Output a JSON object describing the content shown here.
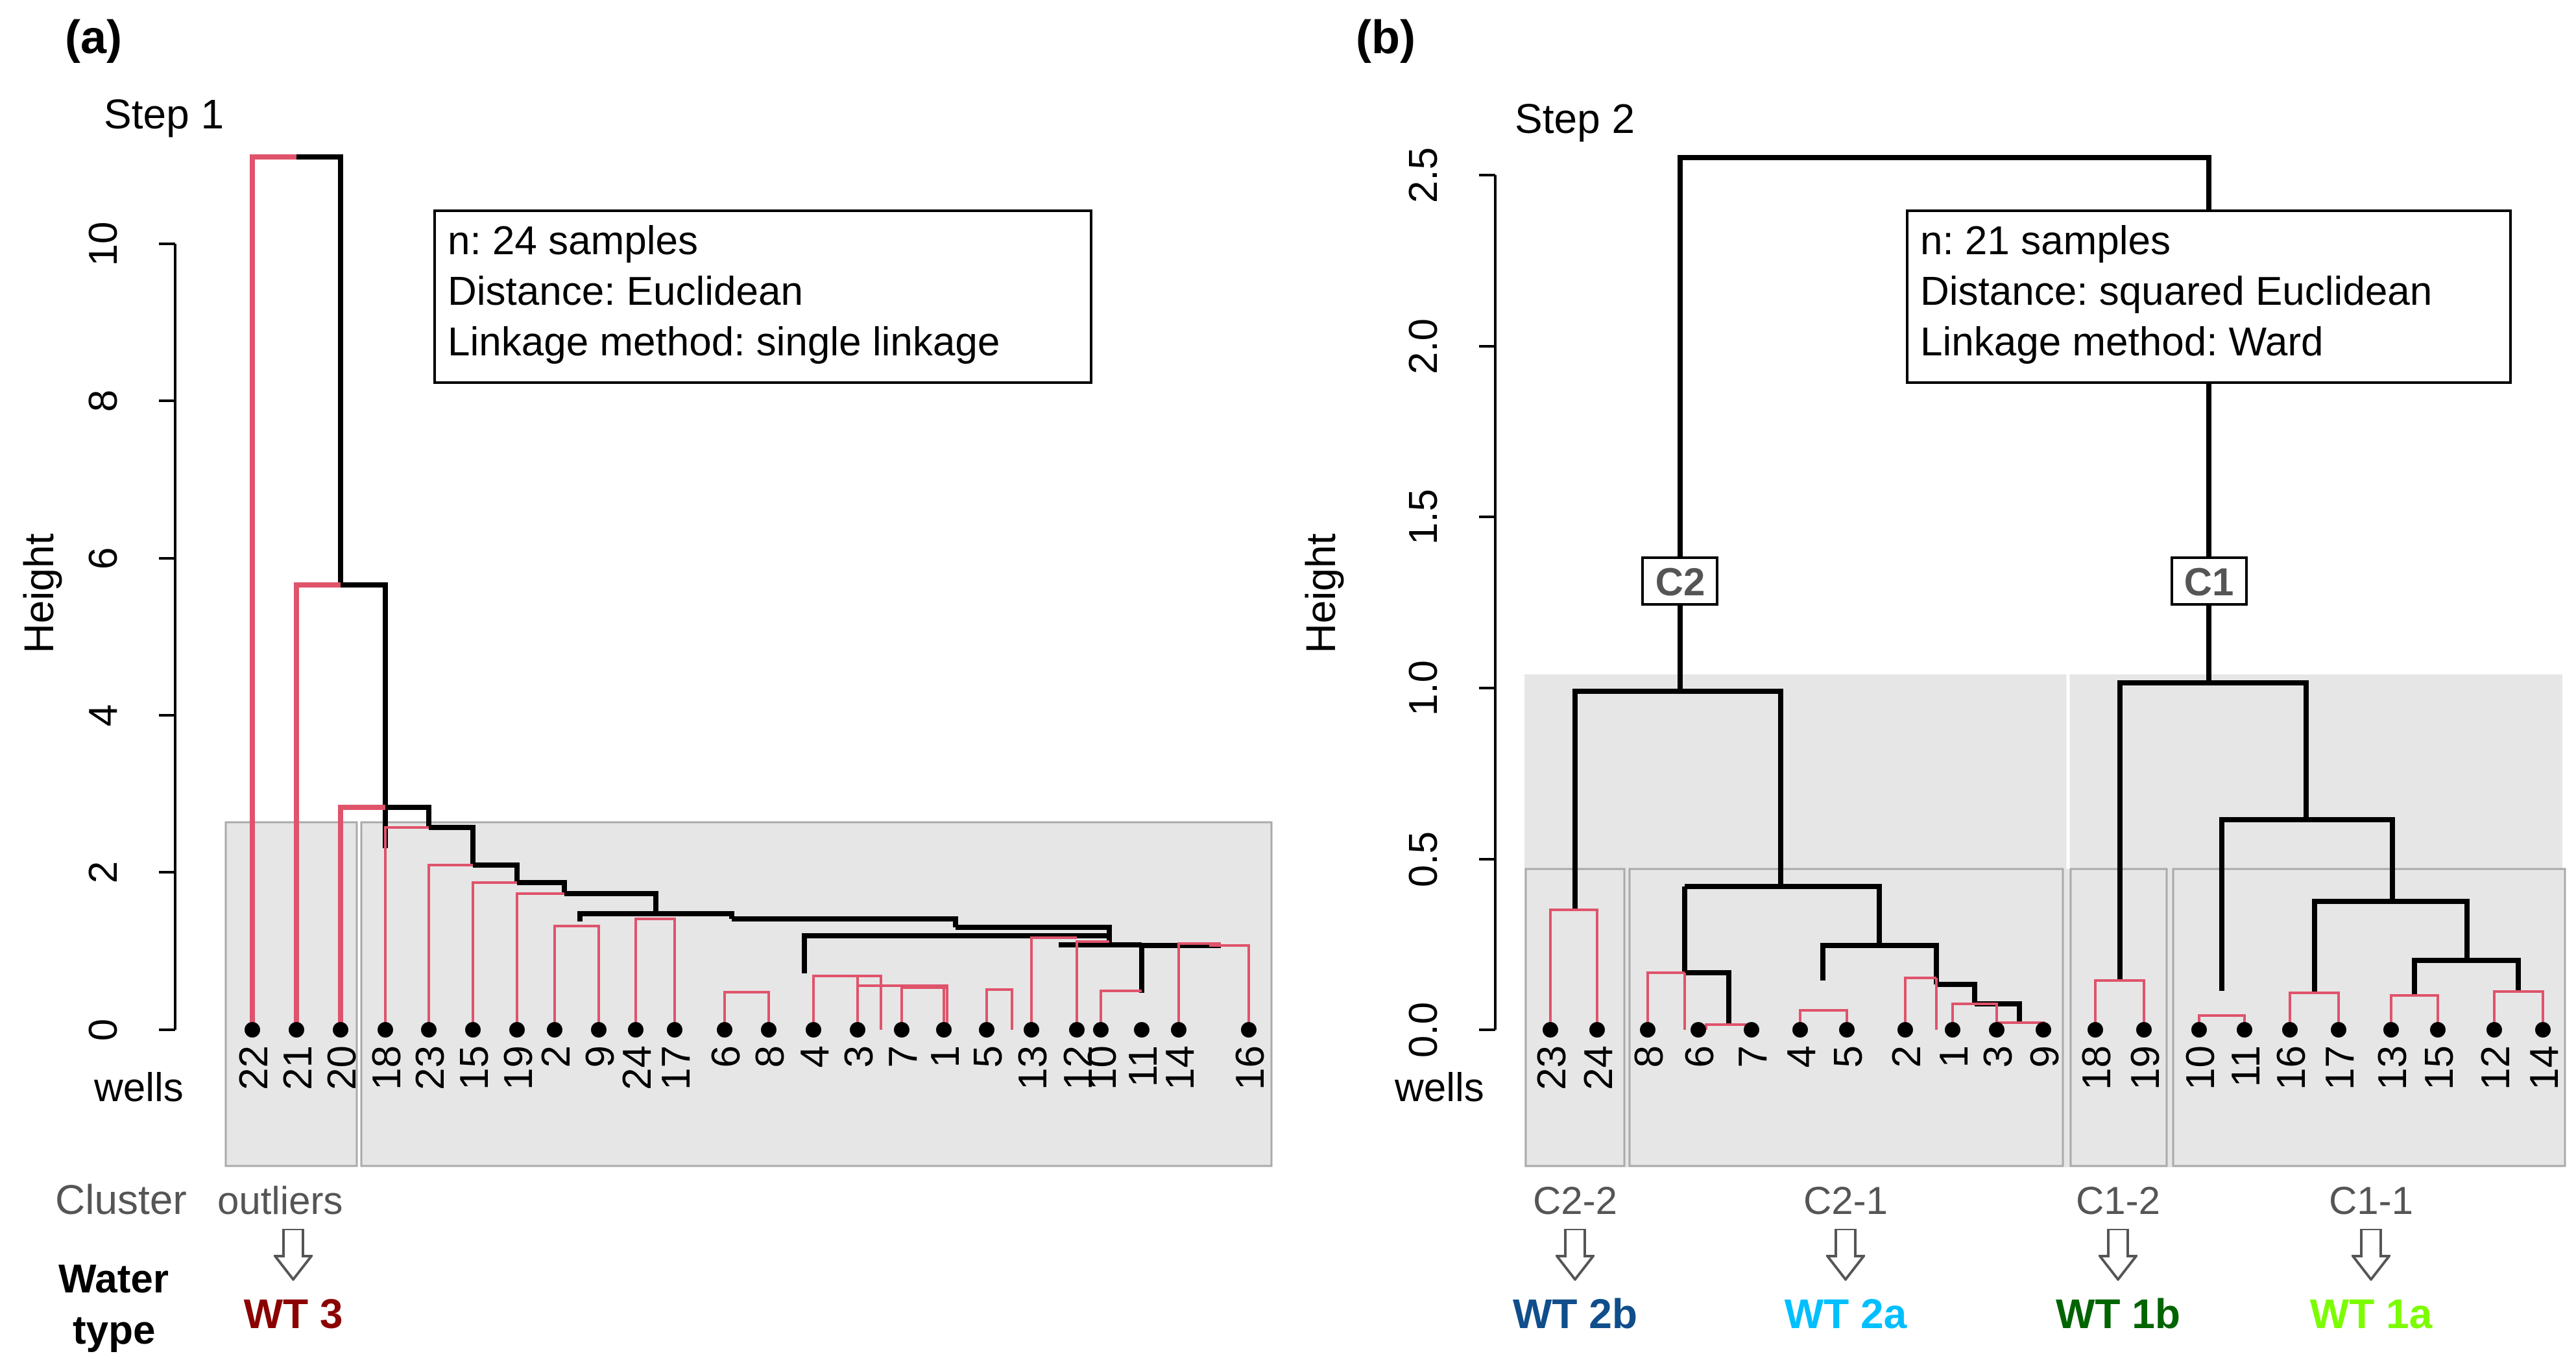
{
  "panel_a": {
    "label": "(a)",
    "step": "Step 1",
    "ylabel": "Height",
    "yticks": [
      "0",
      "2",
      "4",
      "6",
      "8",
      "10"
    ],
    "info": [
      "n: 24 samples",
      "Distance: Euclidean",
      "Linkage method: single linkage"
    ],
    "wells_label": "wells",
    "leaves": [
      "22",
      "21",
      "20",
      "18",
      "23",
      "15",
      "19",
      "2",
      "9",
      "24",
      "17",
      "6",
      "8",
      "4",
      "3",
      "7",
      "1",
      "5",
      "13",
      "12",
      "10",
      "11",
      "14",
      "16"
    ],
    "cluster_label": "Cluster",
    "clusters": [
      {
        "name": "outliers",
        "water_type": "WT 3"
      }
    ],
    "water_type_label_1": "Water",
    "water_type_label_2": "type"
  },
  "panel_b": {
    "label": "(b)",
    "step": "Step 2",
    "ylabel": "Height",
    "yticks": [
      "0.0",
      "0.5",
      "1.0",
      "1.5",
      "2.0",
      "2.5"
    ],
    "info": [
      "n: 21 samples",
      "Distance: squared Euclidean",
      "Linkage method: Ward"
    ],
    "wells_label": "wells",
    "leaves": [
      "23",
      "24",
      "8",
      "6",
      "7",
      "4",
      "5",
      "2",
      "1",
      "3",
      "9",
      "18",
      "19",
      "10",
      "11",
      "16",
      "17",
      "13",
      "15",
      "12",
      "14"
    ],
    "node_labels": [
      "C2",
      "C1"
    ],
    "clusters": [
      {
        "name": "C2-2",
        "water_type": "WT 2b"
      },
      {
        "name": "C2-1",
        "water_type": "WT 2a"
      },
      {
        "name": "C1-2",
        "water_type": "WT 1b"
      },
      {
        "name": "C1-1",
        "water_type": "WT 1a"
      }
    ]
  },
  "colors": {
    "branch_black": "#000000",
    "branch_red": "#df536b",
    "shade": "#e6e6e6",
    "wt3": "#8b0000",
    "wt2b": "#104e8b",
    "wt2a": "#00bfff",
    "wt1b": "#006400",
    "wt1a": "#7cfc00"
  }
}
